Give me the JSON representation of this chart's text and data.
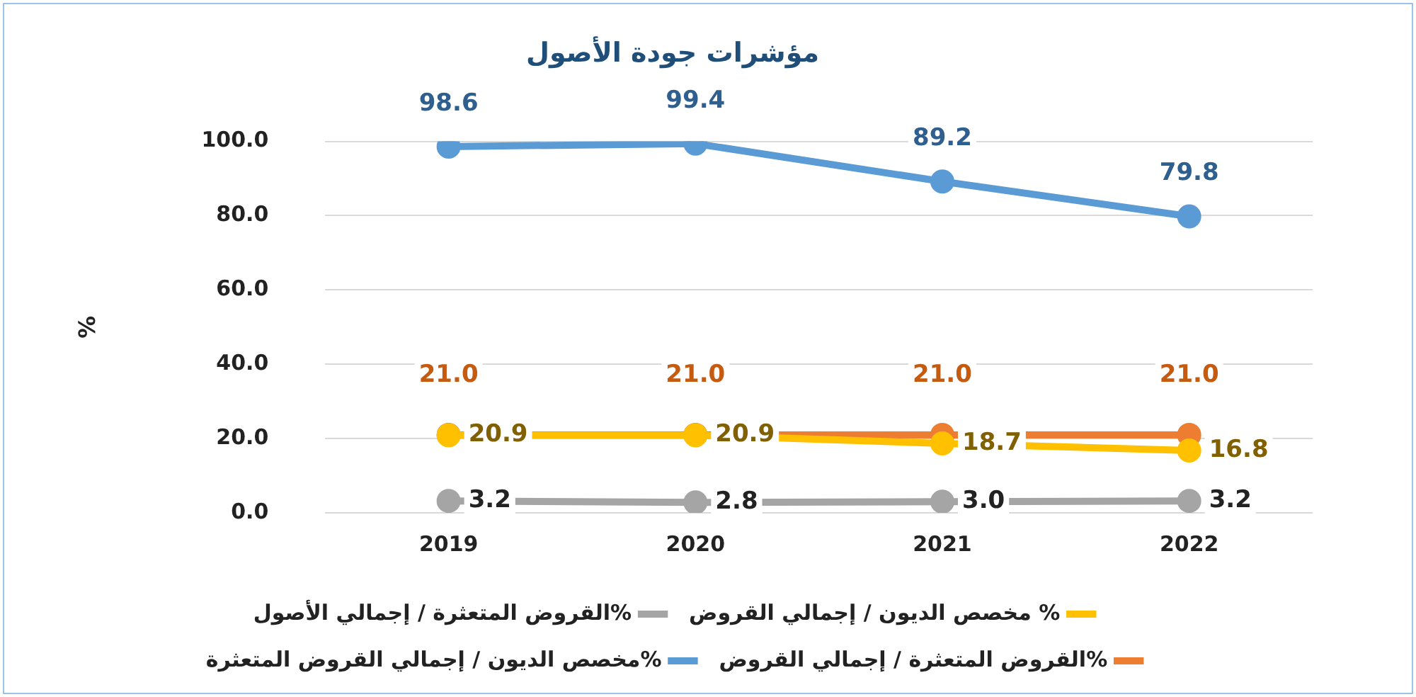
{
  "chart_data": {
    "type": "line",
    "title": "مؤشرات جودة الأصول",
    "ylabel": "%",
    "categories": [
      "2019",
      "2020",
      "2021",
      "2022"
    ],
    "series": [
      {
        "name": "مخصص الديون / إجمالي القروض المتعثرة%",
        "color": "#5b9bd5",
        "values": [
          98.6,
          99.4,
          89.2,
          79.8
        ],
        "value_labels": [
          "98.6",
          "99.4",
          "89.2",
          "79.8"
        ]
      },
      {
        "name": "القروض المتعثرة / إجمالي القروض%",
        "color": "#ed7d31",
        "values": [
          21.0,
          21.0,
          21.0,
          21.0
        ],
        "value_labels": [
          "21.0",
          "21.0",
          "21.0",
          "21.0"
        ]
      },
      {
        "name": "القروض المتعثرة / إجمالي الأصول%",
        "color": "#a5a5a5",
        "values": [
          3.2,
          2.8,
          3.0,
          3.2
        ],
        "value_labels": [
          "3.2",
          "2.8",
          "3.0",
          "3.2"
        ]
      },
      {
        "name": "مخصص الديون / إجمالي القروض %",
        "color": "#ffc000",
        "values": [
          20.9,
          20.9,
          18.7,
          16.8
        ],
        "value_labels": [
          "20.9",
          "20.9",
          "18.7",
          "16.8"
        ]
      }
    ],
    "ylim": [
      0,
      100
    ],
    "yticks": [
      {
        "value": 0,
        "label": "0.0"
      },
      {
        "value": 20,
        "label": "20.0"
      },
      {
        "value": 40,
        "label": "40.0"
      },
      {
        "value": 60,
        "label": "60.0"
      },
      {
        "value": 80,
        "label": "80.0"
      },
      {
        "value": 100,
        "label": "100.0"
      }
    ],
    "grid": "y",
    "legend": "bottom",
    "marker": "circle",
    "line_style": "solid"
  }
}
